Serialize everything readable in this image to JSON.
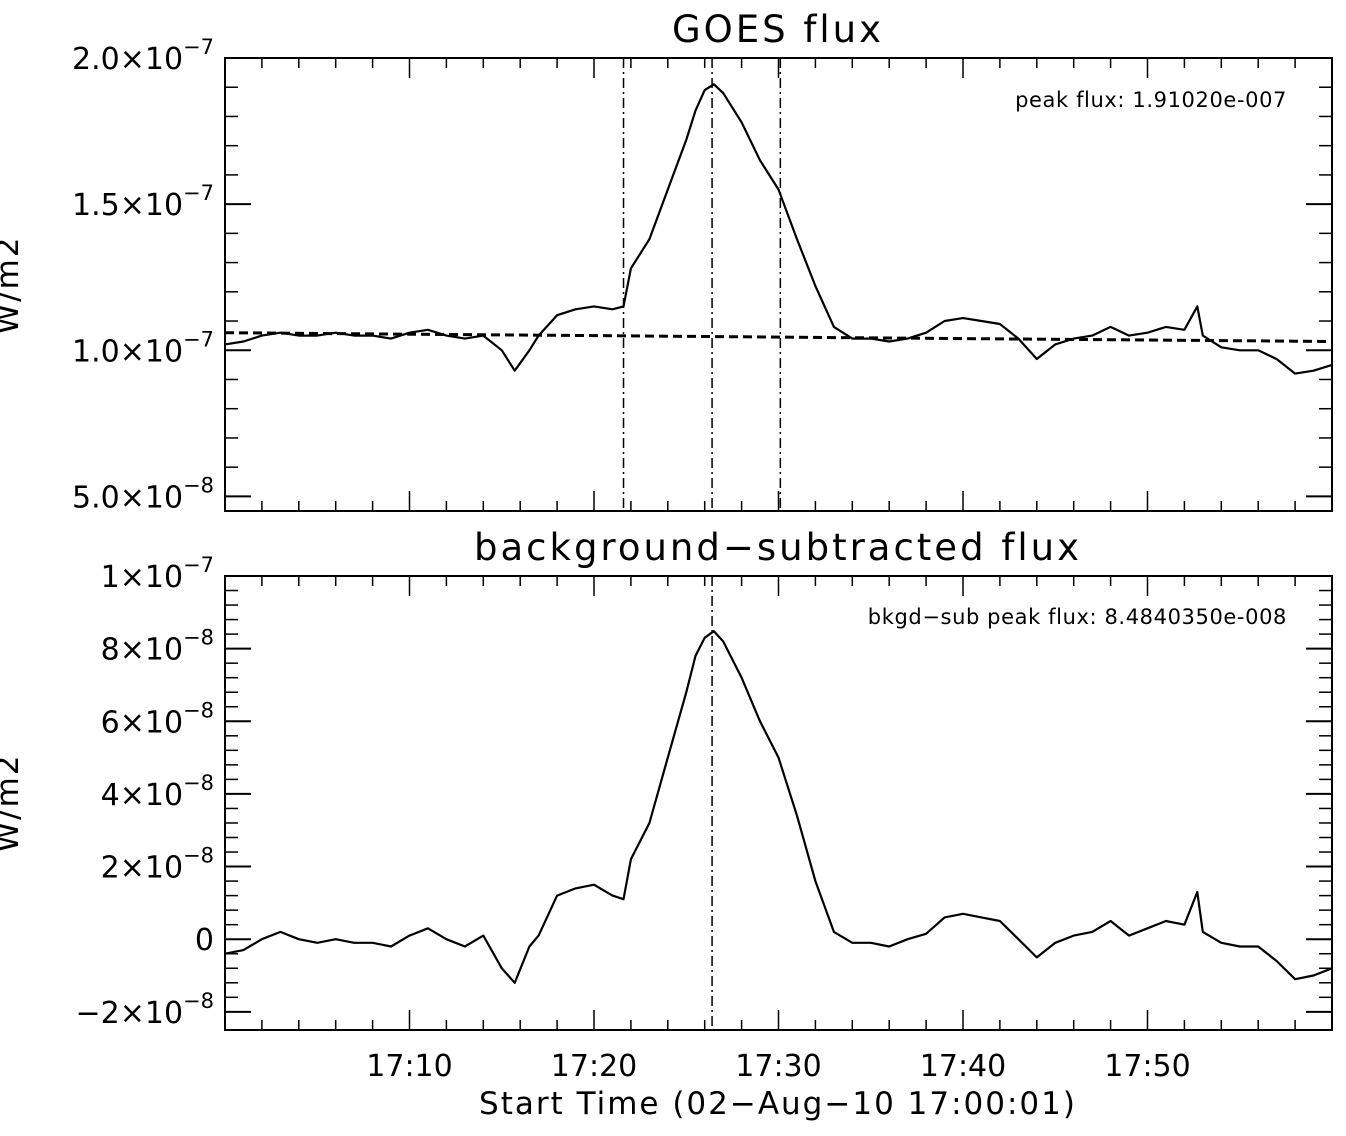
{
  "chart_data": [
    {
      "type": "line",
      "title": "GOES flux",
      "xlabel": "",
      "ylabel": "W/m2",
      "xlim_minutes": [
        0,
        60
      ],
      "ylim": [
        4.5e-08,
        2e-07
      ],
      "yticks": [
        {
          "value": 5e-08,
          "mantissa": "5.0",
          "exponent": "−8"
        },
        {
          "value": 1e-07,
          "mantissa": "1.0",
          "exponent": "−7"
        },
        {
          "value": 1.5e-07,
          "mantissa": "1.5",
          "exponent": "−7"
        },
        {
          "value": 2e-07,
          "mantissa": "2.0",
          "exponent": "−7"
        }
      ],
      "annotation": "peak flux: 1.91020e-007",
      "vertical_lines_minutes": [
        21.6,
        26.4,
        30.1
      ],
      "series": [
        {
          "style": "solid",
          "x": [
            0,
            1,
            2,
            3,
            4,
            5,
            6,
            7,
            8,
            9,
            10,
            11,
            12,
            13,
            14,
            15,
            15.7,
            16.5,
            17,
            18,
            19,
            20,
            21,
            21.6,
            22,
            23,
            24,
            25,
            25.5,
            26,
            26.5,
            27,
            28,
            29,
            30,
            31,
            32,
            33,
            34,
            35,
            36,
            37,
            38,
            39,
            40,
            41,
            42,
            43,
            44,
            45,
            46,
            47,
            48,
            49,
            50,
            51,
            52,
            52.7,
            53,
            54,
            55,
            56,
            57,
            58,
            59,
            60
          ],
          "y": [
            1.02e-07,
            1.03e-07,
            1.05e-07,
            1.06e-07,
            1.05e-07,
            1.05e-07,
            1.06e-07,
            1.05e-07,
            1.05e-07,
            1.04e-07,
            1.06e-07,
            1.07e-07,
            1.05e-07,
            1.04e-07,
            1.05e-07,
            1e-07,
            9.3e-08,
            1e-07,
            1.05e-07,
            1.12e-07,
            1.14e-07,
            1.15e-07,
            1.14e-07,
            1.15e-07,
            1.28e-07,
            1.38e-07,
            1.55e-07,
            1.72e-07,
            1.82e-07,
            1.89e-07,
            1.91e-07,
            1.88e-07,
            1.78e-07,
            1.65e-07,
            1.55e-07,
            1.38e-07,
            1.22e-07,
            1.08e-07,
            1.04e-07,
            1.04e-07,
            1.03e-07,
            1.04e-07,
            1.06e-07,
            1.1e-07,
            1.11e-07,
            1.1e-07,
            1.09e-07,
            1.04e-07,
            9.7e-08,
            1.02e-07,
            1.04e-07,
            1.05e-07,
            1.08e-07,
            1.05e-07,
            1.06e-07,
            1.08e-07,
            1.07e-07,
            1.15e-07,
            1.05e-07,
            1.01e-07,
            1e-07,
            1e-07,
            9.7e-08,
            9.2e-08,
            9.3e-08,
            9.5e-08
          ]
        },
        {
          "style": "dashed",
          "x": [
            0,
            10,
            20,
            30,
            40,
            50,
            60
          ],
          "y": [
            1.06e-07,
            1.055e-07,
            1.05e-07,
            1.045e-07,
            1.04e-07,
            1.035e-07,
            1.03e-07
          ]
        }
      ]
    },
    {
      "type": "line",
      "title": "background−subtracted flux",
      "xlabel": "Start Time (02−Aug−10 17:00:01)",
      "ylabel": "W/m2",
      "xlim_minutes": [
        0,
        60
      ],
      "ylim": [
        -2.5e-08,
        1e-07
      ],
      "xticks": [
        {
          "value": 10,
          "label": "17:10"
        },
        {
          "value": 20,
          "label": "17:20"
        },
        {
          "value": 30,
          "label": "17:30"
        },
        {
          "value": 40,
          "label": "17:40"
        },
        {
          "value": 50,
          "label": "17:50"
        }
      ],
      "yticks": [
        {
          "value": -2e-08,
          "mantissa": "−2",
          "exponent": "−8"
        },
        {
          "value": 0,
          "mantissa": "0",
          "exponent": ""
        },
        {
          "value": 2e-08,
          "mantissa": "2",
          "exponent": "−8"
        },
        {
          "value": 4e-08,
          "mantissa": "4",
          "exponent": "−8"
        },
        {
          "value": 6e-08,
          "mantissa": "6",
          "exponent": "−8"
        },
        {
          "value": 8e-08,
          "mantissa": "8",
          "exponent": "−8"
        },
        {
          "value": 1e-07,
          "mantissa": "1",
          "exponent": "−7"
        }
      ],
      "annotation": "bkgd−sub peak flux: 8.4840350e-008",
      "vertical_lines_minutes": [
        26.4
      ],
      "series": [
        {
          "style": "solid",
          "x": [
            0,
            1,
            2,
            3,
            4,
            5,
            6,
            7,
            8,
            9,
            10,
            11,
            12,
            13,
            14,
            15,
            15.7,
            16.5,
            17,
            18,
            19,
            20,
            21,
            21.6,
            22,
            23,
            24,
            25,
            25.5,
            26,
            26.5,
            27,
            28,
            29,
            30,
            31,
            32,
            33,
            34,
            35,
            36,
            37,
            38,
            39,
            40,
            41,
            42,
            43,
            44,
            45,
            46,
            47,
            48,
            49,
            50,
            51,
            52,
            52.7,
            53,
            54,
            55,
            56,
            57,
            58,
            59,
            60
          ],
          "y": [
            -4e-09,
            -3e-09,
            0,
            2e-09,
            0,
            -1e-09,
            0,
            -1e-09,
            -1e-09,
            -2e-09,
            1e-09,
            3e-09,
            0,
            -2e-09,
            1e-09,
            -8e-09,
            -1.2e-08,
            -2e-09,
            1e-09,
            1.2e-08,
            1.4e-08,
            1.5e-08,
            1.2e-08,
            1.1e-08,
            2.2e-08,
            3.2e-08,
            5e-08,
            6.8e-08,
            7.8e-08,
            8.3e-08,
            8.48e-08,
            8.2e-08,
            7.2e-08,
            6e-08,
            5e-08,
            3.4e-08,
            1.6e-08,
            2e-09,
            -1e-09,
            -1e-09,
            -2e-09,
            0,
            1.5e-09,
            6e-09,
            7e-09,
            6e-09,
            5e-09,
            0,
            -5e-09,
            -1e-09,
            1e-09,
            2e-09,
            5e-09,
            1e-09,
            3e-09,
            5e-09,
            4e-09,
            1.3e-08,
            2e-09,
            -1e-09,
            -2e-09,
            -2e-09,
            -6e-09,
            -1.1e-08,
            -1e-08,
            -8e-09
          ]
        }
      ]
    }
  ]
}
